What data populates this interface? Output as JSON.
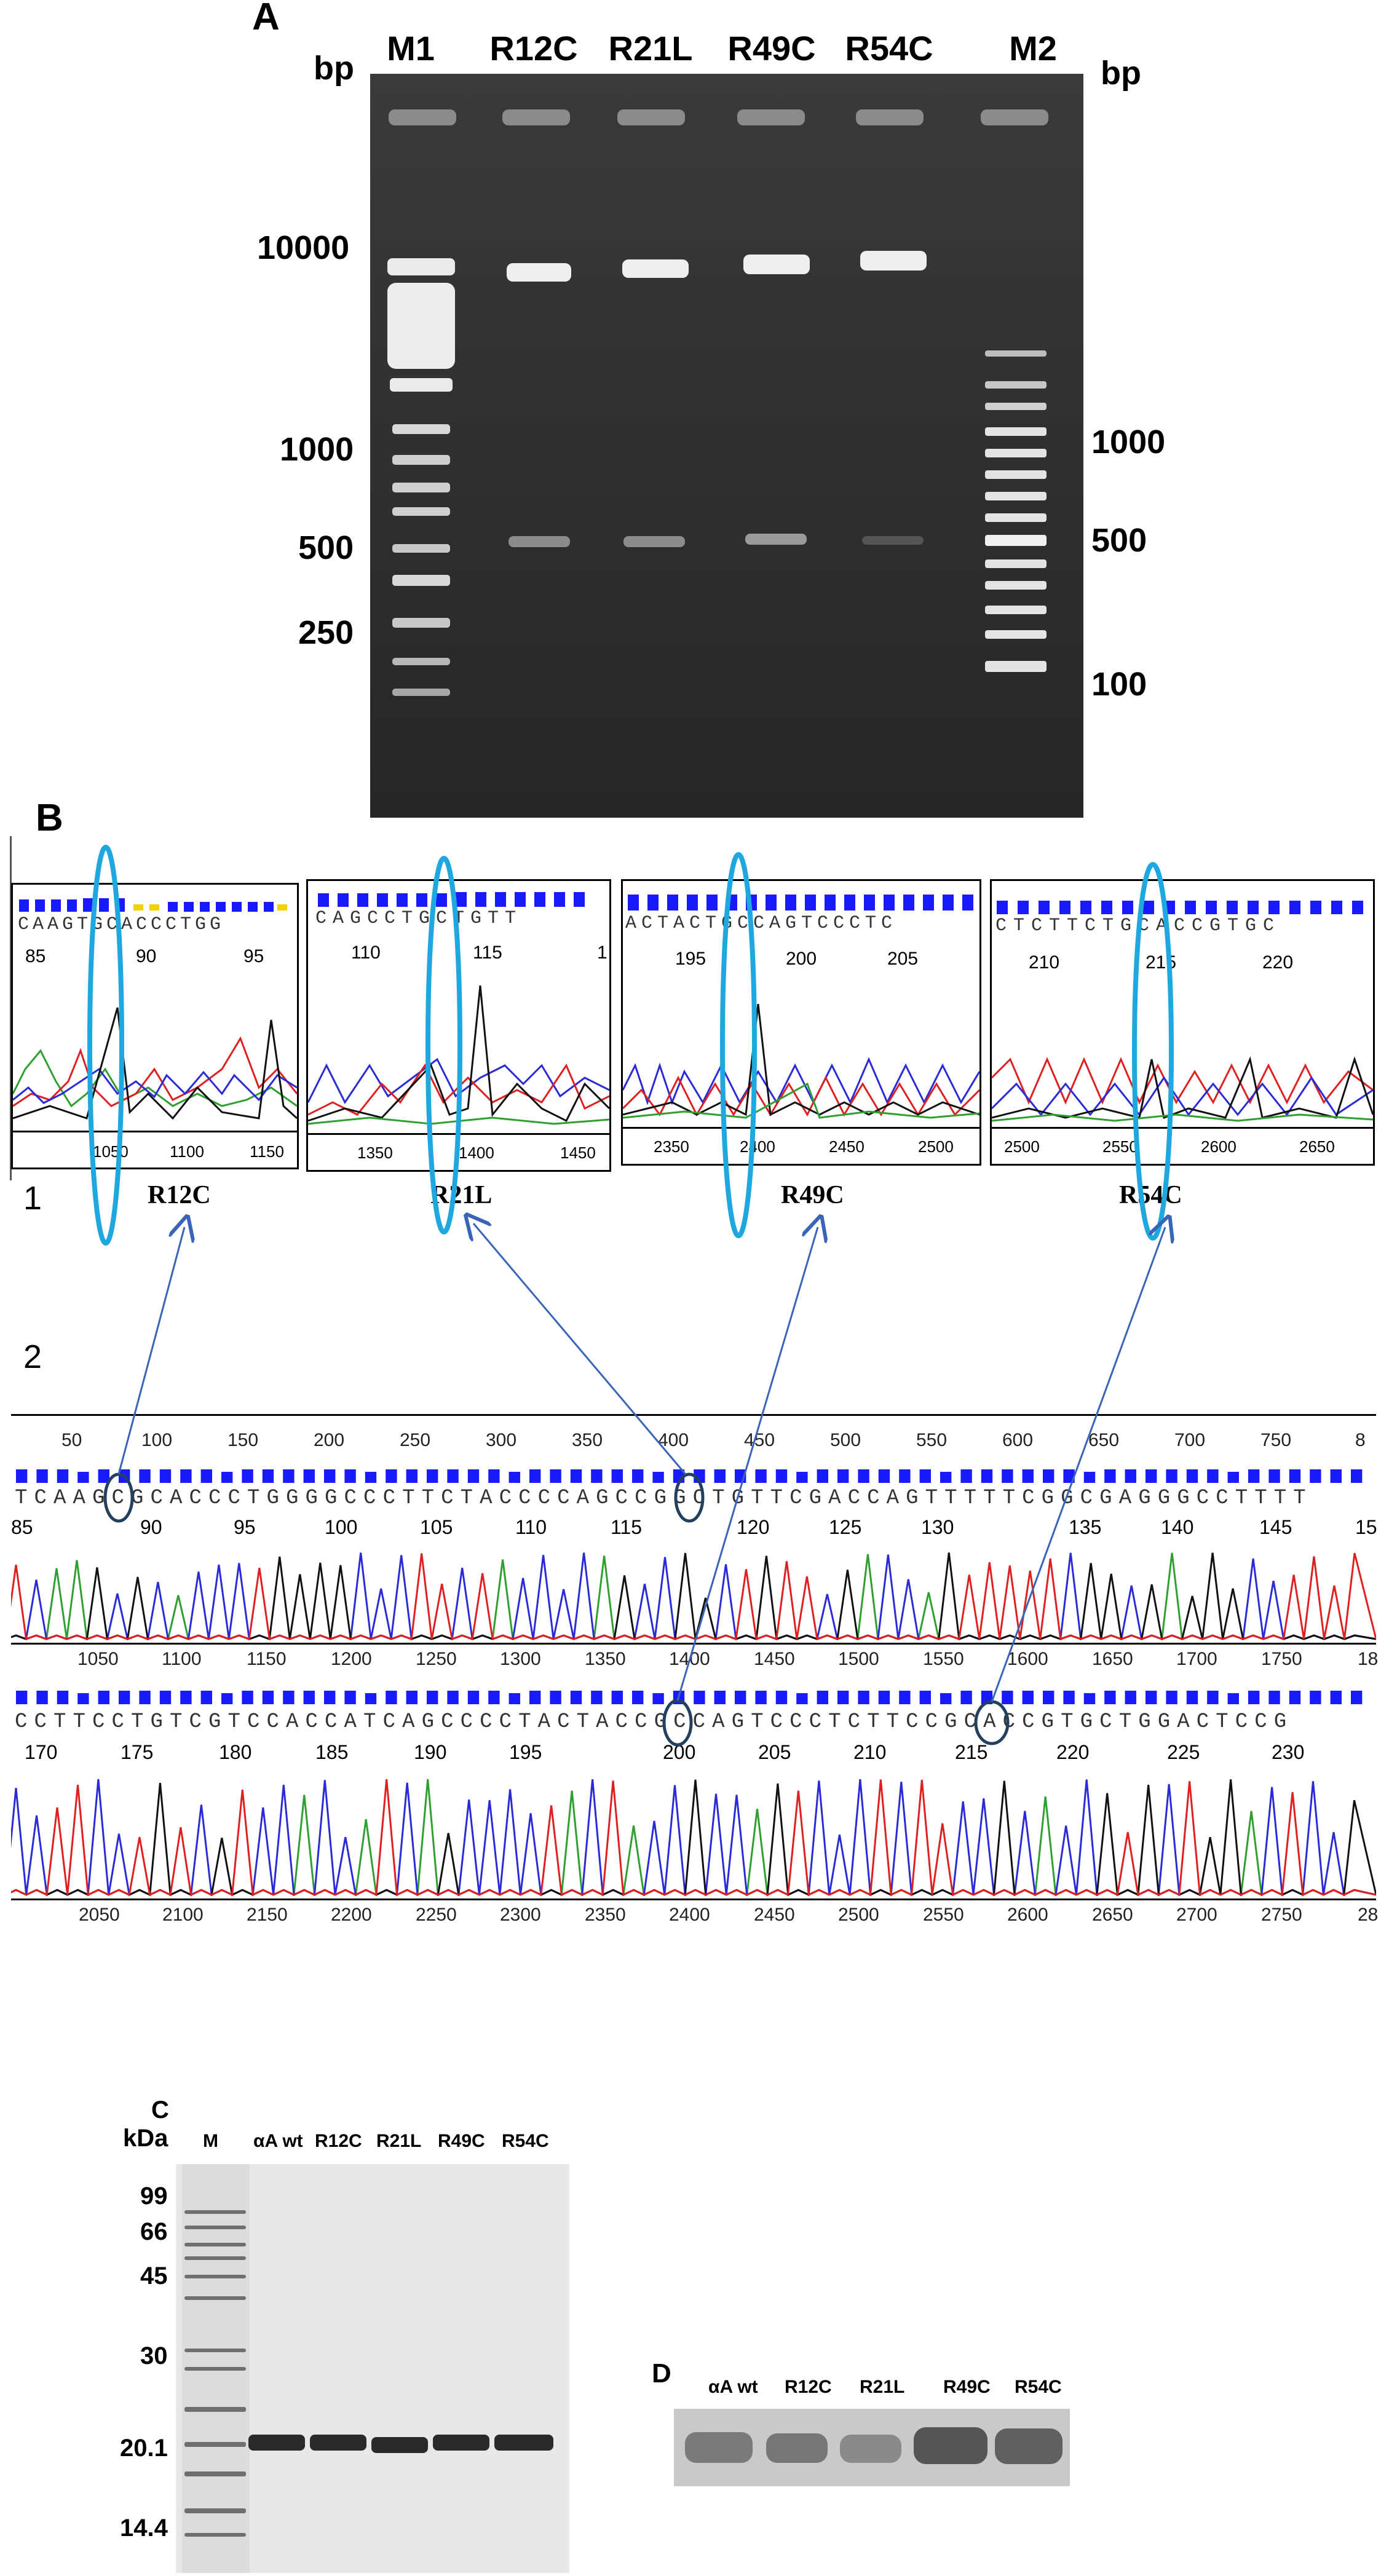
{
  "panelA": {
    "letter": "A",
    "bp_left": "bp",
    "bp_right": "bp",
    "lanes": [
      "M1",
      "R12C",
      "R21L",
      "R49C",
      "R54C",
      "M2"
    ],
    "left_markers": [
      "10000",
      "1000",
      "500",
      "250"
    ],
    "right_markers": [
      "1000",
      "500",
      "100"
    ]
  },
  "panelB": {
    "letter": "B",
    "row1_label": "1",
    "row2_label": "2",
    "boxes": [
      {
        "name": "R12C",
        "seq": "CAAGTGCACCCTGG",
        "nums": [
          "85",
          "90",
          "95"
        ],
        "scale": [
          "1050",
          "1100",
          "1150"
        ]
      },
      {
        "name": "R21L",
        "seq": "CAGCCTGCTGTT",
        "nums": [
          "110",
          "115",
          "1"
        ],
        "scale": [
          "1350",
          "1400",
          "1450"
        ]
      },
      {
        "name": "R49C",
        "seq": "ACTACTGCCAGTCCCTC",
        "nums": [
          "195",
          "200",
          "205"
        ],
        "scale": [
          "2350",
          "2400",
          "2450",
          "2500"
        ]
      },
      {
        "name": "R54C",
        "seq": "CTCTTCTGCACCGTGC",
        "nums": [
          "210",
          "215",
          "220"
        ],
        "scale": [
          "2500",
          "2550",
          "2600",
          "2650"
        ]
      }
    ],
    "track1": {
      "top_scale": [
        "50",
        "100",
        "150",
        "200",
        "250",
        "300",
        "350",
        "400",
        "450",
        "500",
        "550",
        "600",
        "650",
        "700",
        "750",
        "8"
      ],
      "seq": "TCAAGCGCACCCTGGGGCCCTTCTACCCCAGCCGGCTGTTCGACCAGTTTTTCGGCGAGGGCCTTTT",
      "nums": [
        "85",
        "90",
        "95",
        "100",
        "105",
        "110",
        "115",
        "120",
        "125",
        "130",
        "135",
        "140",
        "145",
        "15"
      ],
      "bottom_scale": [
        "1050",
        "1100",
        "1150",
        "1200",
        "1250",
        "1300",
        "1350",
        "1400",
        "1450",
        "1500",
        "1550",
        "1600",
        "1650",
        "1700",
        "1750",
        "18"
      ]
    },
    "track2": {
      "seq": "CCTTCCTGTCGTCCACCATCAGCCCCTACTACCGCCAGTCCCTCTTCCGCACCGTGCTGGACTCCG",
      "nums": [
        "170",
        "175",
        "180",
        "185",
        "190",
        "195",
        "200",
        "205",
        "210",
        "215",
        "220",
        "225",
        "230"
      ],
      "bottom_scale": [
        "2050",
        "2100",
        "2150",
        "2200",
        "2250",
        "2300",
        "2350",
        "2400",
        "2450",
        "2500",
        "2550",
        "2600",
        "2650",
        "2700",
        "2750",
        "28"
      ]
    }
  },
  "panelC": {
    "letter": "C",
    "unit": "kDa",
    "lanes": [
      "M",
      "αA wt",
      "R12C",
      "R21L",
      "R49C",
      "R54C"
    ],
    "markers": [
      "99",
      "66",
      "45",
      "30",
      "20.1",
      "14.4"
    ]
  },
  "panelD": {
    "letter": "D",
    "lanes": [
      "αA wt",
      "R12C",
      "R21L",
      "R49C",
      "R54C"
    ]
  },
  "colors": {
    "A": "#2fa02f",
    "C": "#2a2ad8",
    "G": "#111111",
    "T": "#e02020",
    "highlight": "#1fa8e0",
    "arrow": "#3a64b8"
  }
}
